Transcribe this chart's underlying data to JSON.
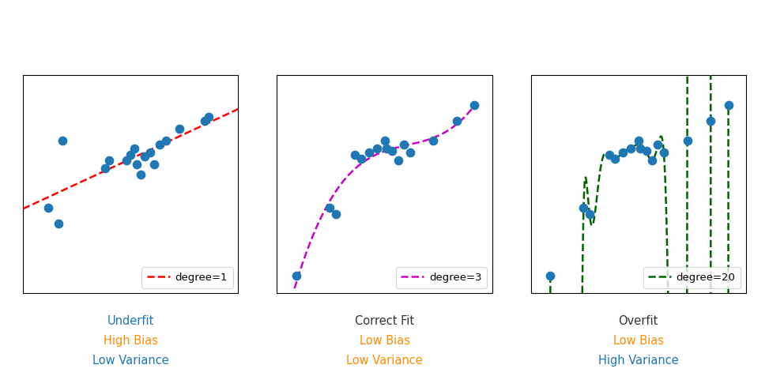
{
  "scatter_x": [
    0.05,
    0.22,
    0.25,
    0.35,
    0.38,
    0.42,
    0.46,
    0.5,
    0.51,
    0.54,
    0.57,
    0.6,
    0.63,
    0.75,
    0.87,
    0.96
  ],
  "scatter_y": [
    0.04,
    0.38,
    0.35,
    0.65,
    0.63,
    0.66,
    0.68,
    0.72,
    0.68,
    0.67,
    0.62,
    0.7,
    0.66,
    0.72,
    0.82,
    0.9
  ],
  "scatter_x1": [
    0.08,
    0.13,
    0.15,
    0.37,
    0.39,
    0.48,
    0.5,
    0.52,
    0.53,
    0.55,
    0.57,
    0.6,
    0.62,
    0.65,
    0.68,
    0.75,
    0.88,
    0.9
  ],
  "scatter_y1": [
    0.38,
    0.3,
    0.72,
    0.58,
    0.62,
    0.62,
    0.65,
    0.68,
    0.6,
    0.55,
    0.64,
    0.66,
    0.6,
    0.7,
    0.72,
    0.78,
    0.82,
    0.84
  ],
  "line_color1": "#FF0000",
  "line_color2": "#CC00CC",
  "line_color3": "#006400",
  "scatter_color": "#1f77b4",
  "scatter_size": 55,
  "legend_label1": "degree=1",
  "legend_label2": "degree=3",
  "legend_label3": "degree=20",
  "title1_lines": [
    "Underfit",
    "High Bias",
    "Low Variance"
  ],
  "title1_colors": [
    "#1f77b4",
    "#FF8C00",
    "#1f77b4"
  ],
  "title2_lines": [
    "Correct Fit",
    "Low Bias",
    "Low Variance"
  ],
  "title2_colors": [
    "#333333",
    "#FF8C00",
    "#FF8C00"
  ],
  "title3_lines": [
    "Overfit",
    "Low Bias",
    "High Variance"
  ],
  "title3_colors": [
    "#333333",
    "#FF8C00",
    "#1f77b4"
  ],
  "fig_bg": "#FFFFFF",
  "ax_bg": "#FFFFFF",
  "xlim": [
    -0.05,
    1.05
  ],
  "ylim": [
    -0.05,
    1.05
  ]
}
